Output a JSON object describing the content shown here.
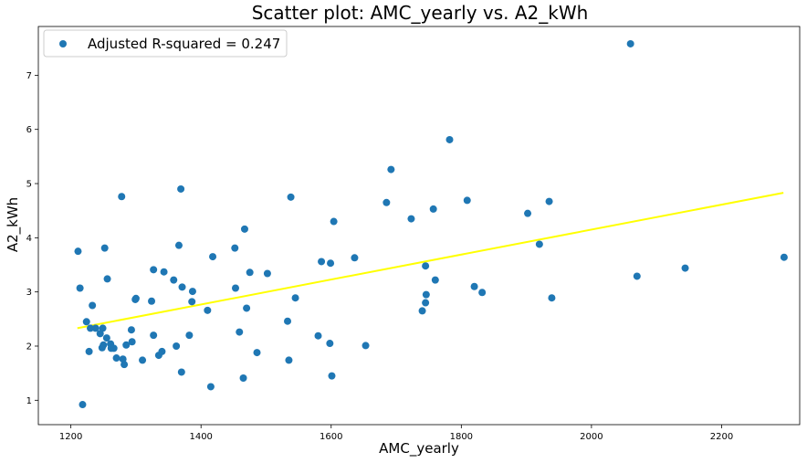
{
  "chart_data": {
    "type": "scatter",
    "title": "Scatter plot: AMC_yearly vs. A2_kWh",
    "xlabel": "AMC_yearly",
    "ylabel": "A2_kWh",
    "xlim": [
      1150,
      2320
    ],
    "ylim": [
      0.55,
      7.9
    ],
    "xticks": [
      1200,
      1400,
      1600,
      1800,
      2000,
      2200
    ],
    "yticks": [
      1,
      2,
      3,
      4,
      5,
      6,
      7
    ],
    "legend": {
      "placement": "top-left",
      "label": "Adjusted R-squared = 0.247"
    },
    "colors": {
      "points": "#1f77b4",
      "fit_line": "#ffff00"
    },
    "fit_line": {
      "x": [
        1210,
        2295
      ],
      "y": [
        2.33,
        4.83
      ]
    },
    "series": [
      {
        "points": [
          [
            1211,
            3.75
          ],
          [
            1214,
            3.07
          ],
          [
            1218,
            0.92
          ],
          [
            1224,
            2.45
          ],
          [
            1228,
            1.9
          ],
          [
            1230,
            2.33
          ],
          [
            1233,
            2.75
          ],
          [
            1238,
            2.33
          ],
          [
            1245,
            2.23
          ],
          [
            1248,
            1.97
          ],
          [
            1249,
            2.33
          ],
          [
            1250,
            2.02
          ],
          [
            1252,
            3.81
          ],
          [
            1255,
            2.15
          ],
          [
            1256,
            3.24
          ],
          [
            1261,
            2.04
          ],
          [
            1262,
            1.96
          ],
          [
            1266,
            1.96
          ],
          [
            1270,
            1.78
          ],
          [
            1278,
            4.76
          ],
          [
            1280,
            1.76
          ],
          [
            1282,
            1.66
          ],
          [
            1285,
            2.02
          ],
          [
            1293,
            2.3
          ],
          [
            1294,
            2.08
          ],
          [
            1299,
            2.86
          ],
          [
            1300,
            2.88
          ],
          [
            1310,
            1.74
          ],
          [
            1324,
            2.83
          ],
          [
            1327,
            2.2
          ],
          [
            1327,
            3.41
          ],
          [
            1335,
            1.83
          ],
          [
            1340,
            1.9
          ],
          [
            1343,
            3.37
          ],
          [
            1358,
            3.22
          ],
          [
            1362,
            2.0
          ],
          [
            1366,
            3.86
          ],
          [
            1369,
            4.9
          ],
          [
            1370,
            1.52
          ],
          [
            1371,
            3.09
          ],
          [
            1382,
            2.2
          ],
          [
            1386,
            2.82
          ],
          [
            1387,
            3.01
          ],
          [
            1410,
            2.66
          ],
          [
            1415,
            1.25
          ],
          [
            1418,
            3.65
          ],
          [
            1452,
            3.81
          ],
          [
            1453,
            3.07
          ],
          [
            1459,
            2.26
          ],
          [
            1465,
            1.41
          ],
          [
            1467,
            4.16
          ],
          [
            1470,
            2.7
          ],
          [
            1475,
            3.36
          ],
          [
            1486,
            1.88
          ],
          [
            1502,
            3.34
          ],
          [
            1533,
            2.46
          ],
          [
            1535,
            1.74
          ],
          [
            1538,
            4.75
          ],
          [
            1545,
            2.89
          ],
          [
            1580,
            2.19
          ],
          [
            1585,
            3.56
          ],
          [
            1598,
            2.05
          ],
          [
            1599,
            3.53
          ],
          [
            1601,
            1.45
          ],
          [
            1604,
            4.3
          ],
          [
            1636,
            3.63
          ],
          [
            1653,
            2.01
          ],
          [
            1685,
            4.65
          ],
          [
            1692,
            5.26
          ],
          [
            1723,
            4.35
          ],
          [
            1740,
            2.65
          ],
          [
            1745,
            2.8
          ],
          [
            1745,
            3.48
          ],
          [
            1746,
            2.95
          ],
          [
            1757,
            4.53
          ],
          [
            1760,
            3.22
          ],
          [
            1782,
            5.81
          ],
          [
            1809,
            4.69
          ],
          [
            1820,
            3.1
          ],
          [
            1832,
            2.99
          ],
          [
            1902,
            4.45
          ],
          [
            1920,
            3.88
          ],
          [
            1935,
            4.67
          ],
          [
            1939,
            2.89
          ],
          [
            2060,
            7.58
          ],
          [
            2070,
            3.29
          ],
          [
            2144,
            3.44
          ],
          [
            2296,
            3.64
          ]
        ]
      }
    ]
  }
}
